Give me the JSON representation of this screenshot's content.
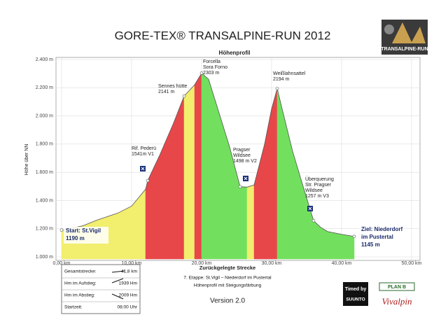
{
  "chart_data": {
    "type": "area",
    "title": "GORE-TEX® TRANSALPINE-RUN 2012",
    "subtitle": "Höhenprofil",
    "y_label": "Höhe über NN",
    "x_label": "Zurückgelegte Strecke",
    "x": [
      0,
      1,
      3,
      5,
      8,
      10,
      12,
      12.3,
      14,
      16,
      17.5,
      19,
      20,
      21,
      22,
      24,
      25.5,
      26.5,
      27.5,
      29,
      30,
      30.8,
      31.5,
      33,
      34.5,
      36,
      37,
      38,
      40,
      41.8
    ],
    "values": [
      1190,
      1200,
      1220,
      1260,
      1310,
      1360,
      1480,
      1541,
      1720,
      1950,
      2141,
      2220,
      2303,
      2260,
      2100,
      1780,
      1498,
      1495,
      1510,
      1800,
      2050,
      2194,
      2050,
      1750,
      1500,
      1257,
      1210,
      1180,
      1160,
      1145
    ],
    "colors": {
      "steep": "#e8474a",
      "gentle": "#f2ee6e",
      "descent": "#72e05e",
      "line": "#555555"
    },
    "xlim": [
      0,
      50
    ],
    "xticks": [
      {
        "value": 0,
        "label": "0,00 km"
      },
      {
        "value": 10,
        "label": "10,00 km"
      },
      {
        "value": 20,
        "label": "20,00 km"
      },
      {
        "value": 30,
        "label": "30,00 km"
      },
      {
        "value": 40,
        "label": "40,00 km"
      },
      {
        "value": 50,
        "label": "50,00 km"
      }
    ],
    "ylim": [
      1000,
      2400
    ],
    "yticks": [
      {
        "value": 1000,
        "label": "1.000 m"
      },
      {
        "value": 1200,
        "label": "1.200 m"
      },
      {
        "value": 1400,
        "label": "1.400 m"
      },
      {
        "value": 1600,
        "label": "1.600 m"
      },
      {
        "value": 1800,
        "label": "1.800 m"
      },
      {
        "value": 2000,
        "label": "2.000 m"
      },
      {
        "value": 2200,
        "label": "2.200 m"
      },
      {
        "value": 2400,
        "label": "2.400 m"
      }
    ],
    "grid": true,
    "annotations": [
      [
        "Start: St.Vigil",
        "1190 m"
      ],
      [
        "Rif. Pederü",
        "1541m V1"
      ],
      [
        "Sennes hütte",
        "2141 m"
      ],
      [
        "Forcella",
        "Sora Forno",
        "2303 m"
      ],
      [
        "Pragser",
        "Wildsee",
        "1498 m V2"
      ],
      [
        "Weißlahnsattel",
        "2194 m"
      ],
      [
        "Überquerung",
        "Str. Pragser",
        "Wildsee",
        "1257 m V3"
      ],
      [
        "Ziel: Niederdorf",
        "im Pustertal",
        "1145 m"
      ]
    ]
  },
  "info": {
    "rows": [
      [
        "Gesamtstrecke:",
        "41,8 km"
      ],
      [
        "Hm im Aufstieg:",
        "1939 Hm"
      ],
      [
        "Hm im Abstieg:",
        "2009 Hm"
      ],
      [
        "Startzeit:",
        "08:00 Uhr"
      ]
    ],
    "caption": [
      "7. Etappe: St.Vigil – Niederdorf im Pustertal",
      "Höhenprofil mit Steigungsfärbung"
    ],
    "version": "Version 2.0"
  },
  "logos": {
    "event": "TRANSALPINE-RUN",
    "timed": "Timed by",
    "suunto": "SUUNTO",
    "planb": "PLAN B",
    "vivalpin": "Vivalpin"
  }
}
